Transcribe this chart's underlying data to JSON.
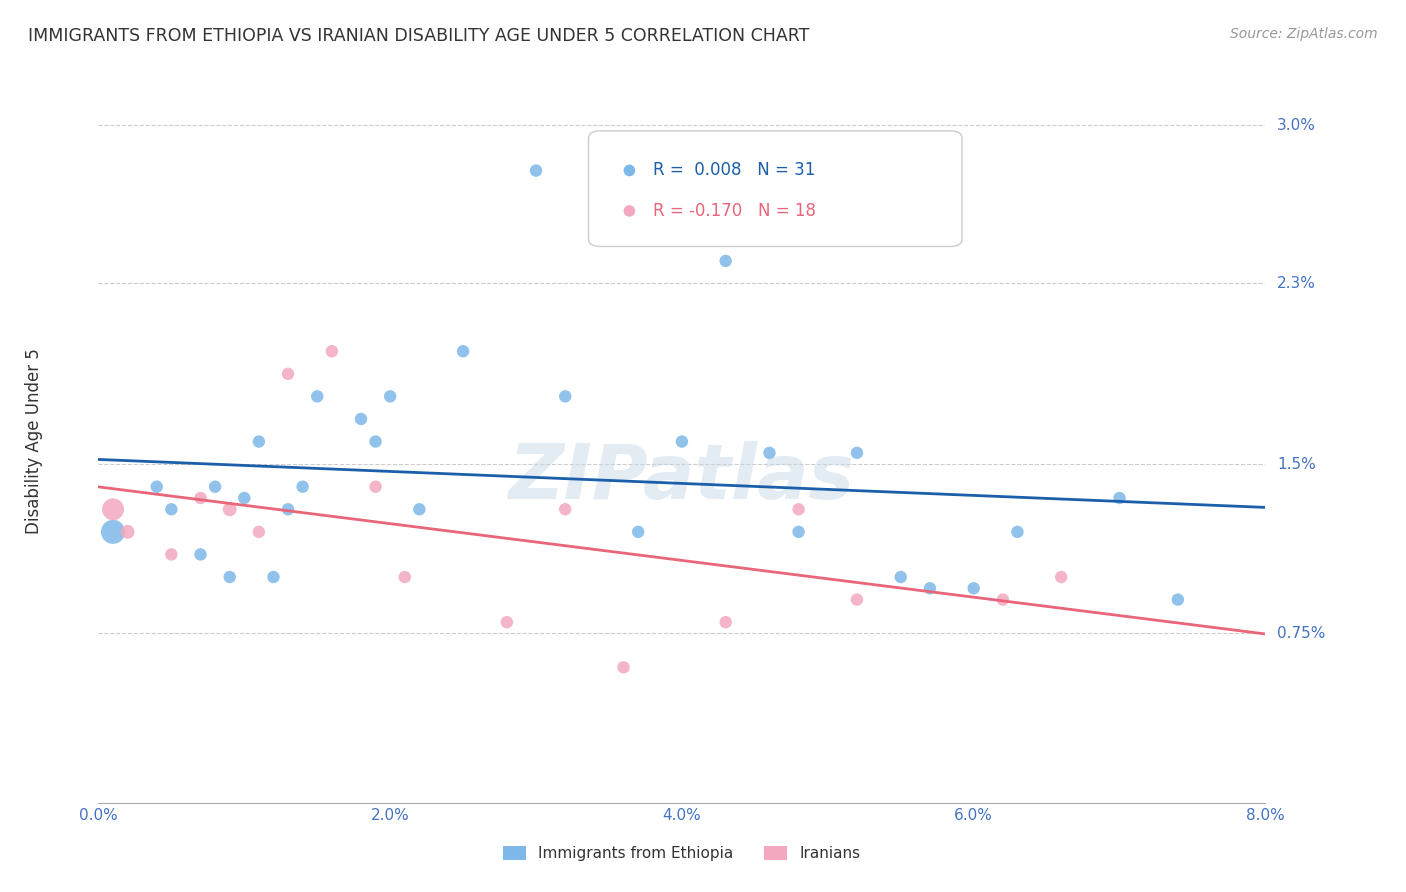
{
  "title": "IMMIGRANTS FROM ETHIOPIA VS IRANIAN DISABILITY AGE UNDER 5 CORRELATION CHART",
  "source": "Source: ZipAtlas.com",
  "ylabel": "Disability Age Under 5",
  "ytick_labels": [
    "3.0%",
    "2.3%",
    "1.5%",
    "0.75%"
  ],
  "ytick_values": [
    0.03,
    0.023,
    0.015,
    0.0075
  ],
  "xlim": [
    0.0,
    0.08
  ],
  "ylim": [
    0.0,
    0.032
  ],
  "watermark": "ZIPatlas",
  "blue_x": [
    0.001,
    0.004,
    0.005,
    0.007,
    0.008,
    0.009,
    0.01,
    0.011,
    0.012,
    0.013,
    0.014,
    0.015,
    0.018,
    0.019,
    0.02,
    0.022,
    0.025,
    0.03,
    0.032,
    0.037,
    0.04,
    0.043,
    0.046,
    0.048,
    0.052,
    0.055,
    0.057,
    0.06,
    0.063,
    0.07,
    0.074
  ],
  "blue_y": [
    0.012,
    0.014,
    0.013,
    0.011,
    0.014,
    0.01,
    0.0135,
    0.016,
    0.01,
    0.013,
    0.014,
    0.018,
    0.017,
    0.016,
    0.018,
    0.013,
    0.02,
    0.028,
    0.018,
    0.012,
    0.016,
    0.024,
    0.0155,
    0.012,
    0.0155,
    0.01,
    0.0095,
    0.0095,
    0.012,
    0.0135,
    0.009
  ],
  "blue_sizes": [
    300,
    80,
    80,
    80,
    80,
    80,
    80,
    80,
    80,
    80,
    80,
    80,
    80,
    80,
    80,
    80,
    80,
    80,
    80,
    80,
    80,
    80,
    80,
    80,
    80,
    80,
    80,
    80,
    80,
    80,
    80
  ],
  "pink_x": [
    0.001,
    0.002,
    0.005,
    0.007,
    0.009,
    0.011,
    0.013,
    0.016,
    0.019,
    0.021,
    0.028,
    0.032,
    0.036,
    0.043,
    0.048,
    0.052,
    0.062,
    0.066
  ],
  "pink_y": [
    0.013,
    0.012,
    0.011,
    0.0135,
    0.013,
    0.012,
    0.019,
    0.02,
    0.014,
    0.01,
    0.008,
    0.013,
    0.006,
    0.008,
    0.013,
    0.009,
    0.009,
    0.01
  ],
  "pink_sizes": [
    250,
    100,
    80,
    80,
    100,
    80,
    80,
    80,
    80,
    80,
    80,
    80,
    80,
    80,
    80,
    80,
    80,
    80
  ],
  "blue_color": "#7EB8E8",
  "pink_color": "#F4A8C0",
  "blue_line_color": "#1B5FAA",
  "pink_line_color": "#E8657A",
  "grid_color": "#CCCCCC",
  "title_color": "#333333",
  "axis_label_color": "#4472C4",
  "background_color": "#FFFFFF",
  "legend_blue_r": "R =  0.008",
  "legend_blue_n": "N = 31",
  "legend_pink_r": "R = -0.170",
  "legend_pink_n": "N = 18",
  "legend_blue_label": "Immigrants from Ethiopia",
  "legend_pink_label": "Iranians"
}
